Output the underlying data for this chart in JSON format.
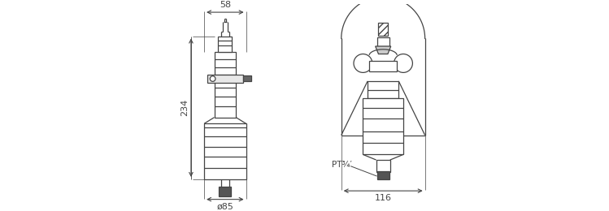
{
  "background": "#ffffff",
  "line_color": "#444444",
  "dim_color": "#444444",
  "fig_width": 7.49,
  "fig_height": 2.6,
  "dpi": 100,
  "dim_58_text": "58",
  "dim_234_text": "234",
  "dim_85_text": "ø85",
  "dim_116_text": "116",
  "dim_PT_text": "PT¾′"
}
